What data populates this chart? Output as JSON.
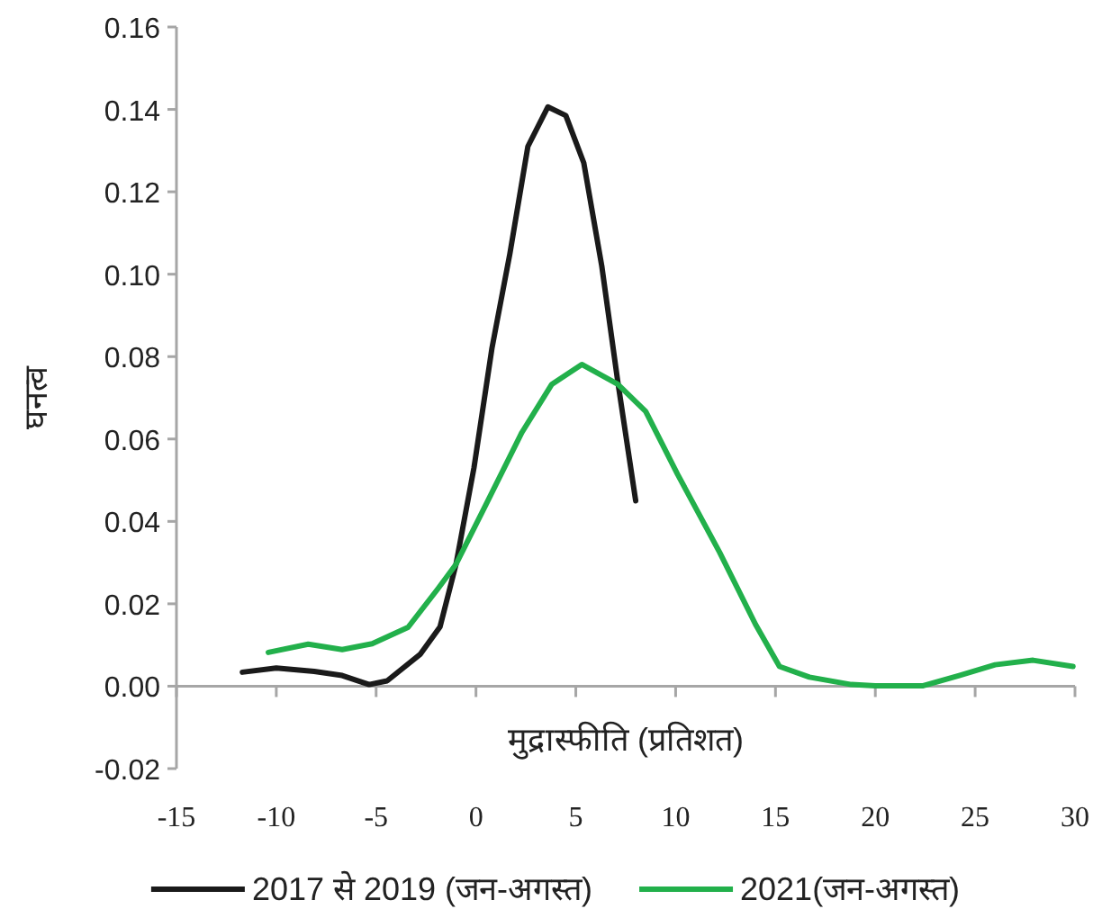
{
  "chart_data": {
    "type": "line",
    "xlabel": "मुद्रास्फीति (प्रतिशत)",
    "ylabel": "घनत्व",
    "xlim": [
      -15,
      30
    ],
    "ylim": [
      -0.02,
      0.16
    ],
    "xticks": [
      -15,
      -10,
      -5,
      0,
      5,
      10,
      15,
      20,
      25,
      30
    ],
    "yticks": [
      {
        "value": -0.02,
        "label": "-0.02"
      },
      {
        "value": 0,
        "label": "0.00"
      },
      {
        "value": 0.02,
        "label": "0.02"
      },
      {
        "value": 0.04,
        "label": "0.04"
      },
      {
        "value": 0.06,
        "label": "0.06"
      },
      {
        "value": 0.08,
        "label": "0.08"
      },
      {
        "value": 0.1,
        "label": "0.10"
      },
      {
        "value": 0.12,
        "label": "0.12"
      },
      {
        "value": 0.14,
        "label": "0.14"
      },
      {
        "value": 0.16,
        "label": "0.16"
      }
    ],
    "legend": "bottom",
    "line_style": "solid",
    "series": [
      {
        "name": "2017 से 2019 (जन-अगस्त)",
        "color": "#1a1a1a",
        "x": [
          -11.7,
          -10,
          -8.1,
          -6.7,
          -5.35,
          -4.45,
          -2.8,
          -1.8,
          -1,
          -0.1,
          0.8,
          1.7,
          2.6,
          3.6,
          4.5,
          5.4,
          6.3,
          7.1,
          8
        ],
        "values": [
          0.0034,
          0.0044,
          0.0036,
          0.0026,
          0.0004,
          0.0013,
          0.0077,
          0.0144,
          0.0296,
          0.053,
          0.082,
          0.105,
          0.131,
          0.1406,
          0.1385,
          0.127,
          0.102,
          0.074,
          0.045
        ]
      },
      {
        "name": "2021(जन-अगस्त)",
        "color": "#22b04b",
        "x": [
          -10.4,
          -8.4,
          -6.7,
          -5.2,
          -3.4,
          -1.9,
          -1,
          0.5,
          2.3,
          3.8,
          5.3,
          7.1,
          8.5,
          10.1,
          12.2,
          14,
          15.2,
          16.7,
          18.8,
          20,
          22.4,
          24.2,
          26,
          27.9,
          29.9
        ],
        "values": [
          0.0082,
          0.0102,
          0.0089,
          0.0103,
          0.0143,
          0.0237,
          0.0296,
          0.0441,
          0.0616,
          0.0733,
          0.0781,
          0.0733,
          0.0667,
          0.0514,
          0.0325,
          0.015,
          0.0048,
          0.0022,
          0.0004,
          0.0001,
          0.0001,
          0.0026,
          0.0052,
          0.0063,
          0.0048
        ]
      }
    ]
  }
}
